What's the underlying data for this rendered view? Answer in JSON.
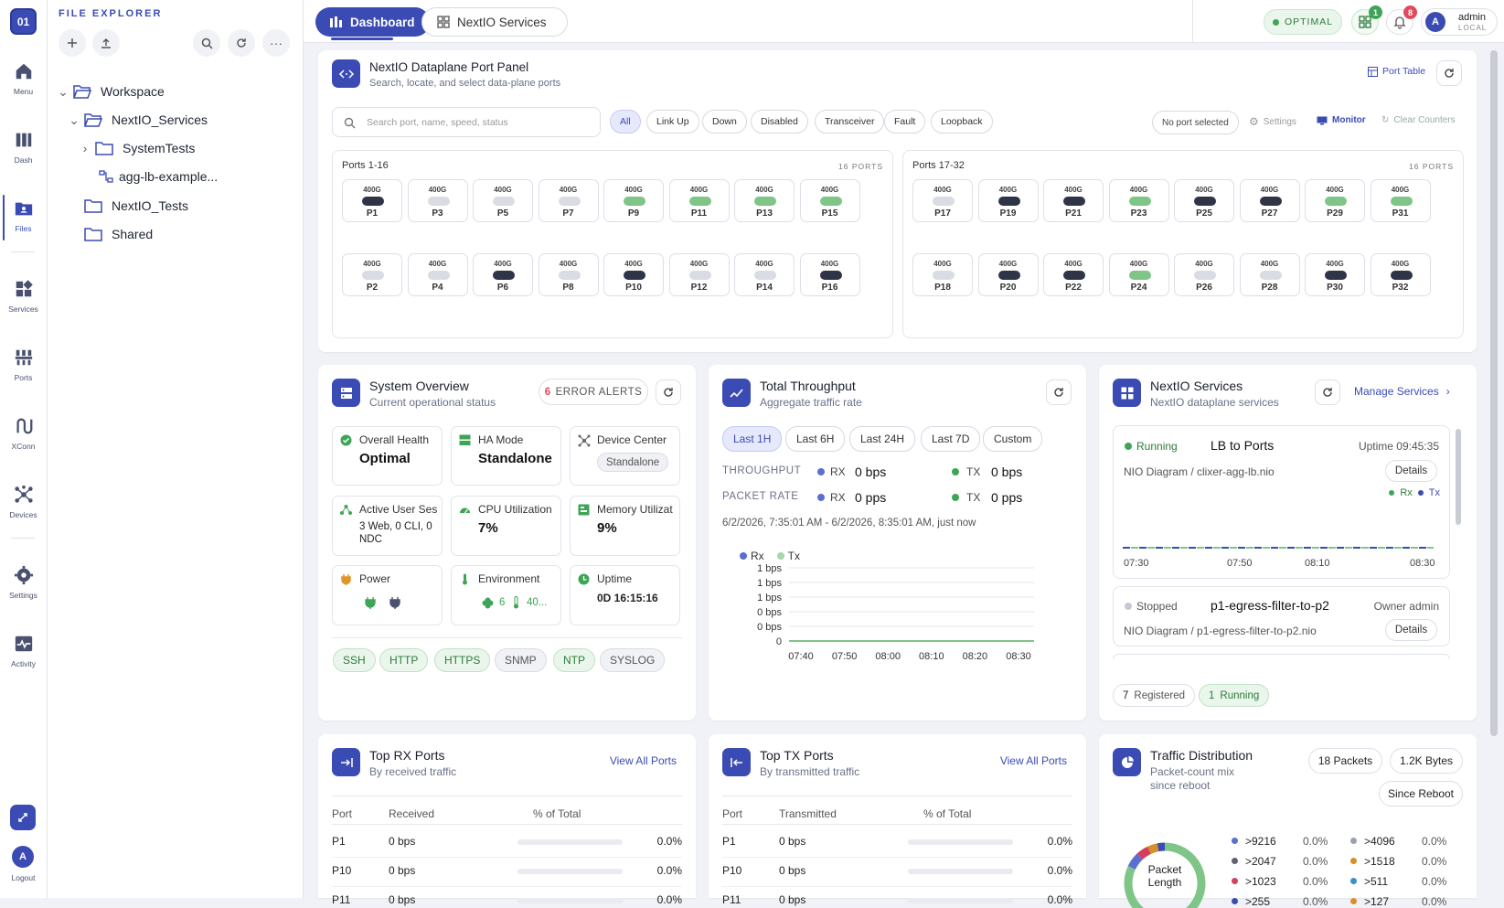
{
  "rail": {
    "items": [
      {
        "label": "Menu"
      },
      {
        "label": "Dash"
      },
      {
        "label": "Files"
      },
      {
        "label": "Services"
      },
      {
        "label": "Ports"
      },
      {
        "label": "XConn"
      },
      {
        "label": "Devices"
      },
      {
        "label": "Settings"
      },
      {
        "label": "Activity"
      }
    ],
    "logout_label": "Logout",
    "user_initial": "A",
    "logo_text": "01"
  },
  "explorer": {
    "title": "FILE EXPLORER",
    "tree": [
      {
        "label": "Workspace"
      },
      {
        "label": "NextIO_Services"
      },
      {
        "label": "SystemTests"
      },
      {
        "label": "agg-lb-example..."
      },
      {
        "label": "NextIO_Tests"
      },
      {
        "label": "Shared"
      }
    ]
  },
  "topbar": {
    "tabs": [
      {
        "label": "Dashboard"
      },
      {
        "label": "NextIO Services"
      }
    ],
    "status": "OPTIMAL",
    "grid_badge": "1",
    "bell_badge": "8",
    "user_initial": "A",
    "user_name": "admin",
    "user_realm": "LOCAL"
  },
  "port_panel": {
    "title": "NextIO Dataplane Port Panel",
    "subtitle": "Search, locate, and select data-plane ports",
    "port_table_label": "Port Table",
    "search_placeholder": "Search port, name, speed, status",
    "filters": [
      "All",
      "Link Up",
      "Down",
      "Disabled",
      "Transceiver",
      "Fault",
      "Loopback"
    ],
    "no_port_selected": "No port selected",
    "settings_label": "Settings",
    "monitor_label": "Monitor",
    "clear_counters_label": "Clear Counters",
    "groups": [
      {
        "title": "Ports 1-16",
        "count": "16 PORTS"
      },
      {
        "title": "Ports 17-32",
        "count": "16 PORTS"
      }
    ],
    "ports": [
      {
        "name": "P1",
        "speed": "400G",
        "state": "dark"
      },
      {
        "name": "P3",
        "speed": "400G",
        "state": "light"
      },
      {
        "name": "P5",
        "speed": "400G",
        "state": "light"
      },
      {
        "name": "P7",
        "speed": "400G",
        "state": "light"
      },
      {
        "name": "P9",
        "speed": "400G",
        "state": "green"
      },
      {
        "name": "P11",
        "speed": "400G",
        "state": "green"
      },
      {
        "name": "P13",
        "speed": "400G",
        "state": "green"
      },
      {
        "name": "P15",
        "speed": "400G",
        "state": "green"
      },
      {
        "name": "P2",
        "speed": "400G",
        "state": "light"
      },
      {
        "name": "P4",
        "speed": "400G",
        "state": "light"
      },
      {
        "name": "P6",
        "speed": "400G",
        "state": "dark"
      },
      {
        "name": "P8",
        "speed": "400G",
        "state": "light"
      },
      {
        "name": "P10",
        "speed": "400G",
        "state": "dark"
      },
      {
        "name": "P12",
        "speed": "400G",
        "state": "light"
      },
      {
        "name": "P14",
        "speed": "400G",
        "state": "light"
      },
      {
        "name": "P16",
        "speed": "400G",
        "state": "dark"
      },
      {
        "name": "P17",
        "speed": "400G",
        "state": "light"
      },
      {
        "name": "P19",
        "speed": "400G",
        "state": "dark"
      },
      {
        "name": "P21",
        "speed": "400G",
        "state": "dark"
      },
      {
        "name": "P23",
        "speed": "400G",
        "state": "green"
      },
      {
        "name": "P25",
        "speed": "400G",
        "state": "dark"
      },
      {
        "name": "P27",
        "speed": "400G",
        "state": "dark"
      },
      {
        "name": "P29",
        "speed": "400G",
        "state": "green"
      },
      {
        "name": "P31",
        "speed": "400G",
        "state": "green"
      },
      {
        "name": "P18",
        "speed": "400G",
        "state": "light"
      },
      {
        "name": "P20",
        "speed": "400G",
        "state": "dark"
      },
      {
        "name": "P22",
        "speed": "400G",
        "state": "dark"
      },
      {
        "name": "P24",
        "speed": "400G",
        "state": "green"
      },
      {
        "name": "P26",
        "speed": "400G",
        "state": "light"
      },
      {
        "name": "P28",
        "speed": "400G",
        "state": "light"
      },
      {
        "name": "P30",
        "speed": "400G",
        "state": "dark"
      },
      {
        "name": "P32",
        "speed": "400G",
        "state": "dark"
      }
    ]
  },
  "system_overview": {
    "title": "System Overview",
    "subtitle": "Current operational status",
    "alerts_count": "6",
    "alerts_label": "ERROR ALERTS",
    "tiles": [
      {
        "label": "Overall Health",
        "value": "Optimal"
      },
      {
        "label": "HA Mode",
        "value": "Standalone"
      },
      {
        "label": "Device Center",
        "value": "Standalone"
      },
      {
        "label": "Active User Ses",
        "value": "3 Web, 0 CLI, 0 NDC"
      },
      {
        "label": "CPU Utilization",
        "value": "7%"
      },
      {
        "label": "Memory Utilizat",
        "value": "9%"
      },
      {
        "label": "Power",
        "value": ""
      },
      {
        "label": "Environment",
        "value": "6",
        "value2": "40..."
      },
      {
        "label": "Uptime",
        "value": "0D 16:15:16"
      }
    ],
    "protocols": [
      {
        "name": "SSH",
        "on": true
      },
      {
        "name": "HTTP",
        "on": true
      },
      {
        "name": "HTTPS",
        "on": true
      },
      {
        "name": "SNMP",
        "on": false
      },
      {
        "name": "NTP",
        "on": true
      },
      {
        "name": "SYSLOG",
        "on": false
      }
    ]
  },
  "throughput": {
    "title": "Total Throughput",
    "subtitle": "Aggregate traffic rate",
    "ranges": [
      "Last 1H",
      "Last 6H",
      "Last 24H",
      "Last 7D",
      "Custom"
    ],
    "throughput_label": "THROUGHPUT",
    "packet_rate_label": "PACKET RATE",
    "rx_label": "RX",
    "tx_label": "TX",
    "throughput_rx": "0 bps",
    "throughput_tx": "0 bps",
    "packet_rx": "0 pps",
    "packet_tx": "0 pps",
    "range_text": "6/2/2026, 7:35:01 AM - 6/2/2026, 8:35:01 AM, just now",
    "colors": {
      "rx": "#5b6fd1",
      "tx": "#7fc587"
    }
  },
  "chart_data": {
    "type": "line",
    "x": [
      "07:40",
      "07:50",
      "08:00",
      "08:10",
      "08:20",
      "08:30"
    ],
    "y_ticks": [
      "1 bps",
      "1 bps",
      "1 bps",
      "0 bps",
      "0 bps",
      "0"
    ],
    "series": [
      {
        "name": "Rx",
        "values": [
          0,
          0,
          0,
          0,
          0,
          0
        ]
      },
      {
        "name": "Tx",
        "values": [
          0,
          0,
          0,
          0,
          0,
          0
        ]
      }
    ],
    "legend": "top-left",
    "grid": true
  },
  "services": {
    "title": "NextIO Services",
    "subtitle": "NextIO dataplane services",
    "manage_label": "Manage Services",
    "items": [
      {
        "status": "Running",
        "name": "LB to Ports",
        "meta": "Uptime 09:45:35",
        "path": "NIO Diagram / clixer-agg-lb.nio",
        "details": "Details",
        "rx": "Rx",
        "tx": "Tx",
        "times": [
          "07:30",
          "07:50",
          "08:10",
          "08:30"
        ]
      },
      {
        "status": "Stopped",
        "name": "p1-egress-filter-to-p2",
        "meta": "Owner admin",
        "path": "NIO Diagram / p1-egress-filter-to-p2.nio",
        "details": "Details"
      }
    ],
    "registered_count": "7",
    "registered_label": "Registered",
    "running_count": "1",
    "running_label": "Running"
  },
  "top_rx": {
    "title": "Top RX Ports",
    "subtitle": "By received traffic",
    "view_all": "View All Ports",
    "headers": [
      "Port",
      "Received",
      "% of Total"
    ],
    "rows": [
      {
        "port": "P1",
        "value": "0 bps",
        "pct": "0.0%"
      },
      {
        "port": "P10",
        "value": "0 bps",
        "pct": "0.0%"
      },
      {
        "port": "P11",
        "value": "0 bps",
        "pct": "0.0%"
      }
    ]
  },
  "top_tx": {
    "title": "Top TX Ports",
    "subtitle": "By transmitted traffic",
    "view_all": "View All Ports",
    "headers": [
      "Port",
      "Transmitted",
      "% of Total"
    ],
    "rows": [
      {
        "port": "P1",
        "value": "0 bps",
        "pct": "0.0%"
      },
      {
        "port": "P10",
        "value": "0 bps",
        "pct": "0.0%"
      },
      {
        "port": "P11",
        "value": "0 bps",
        "pct": "0.0%"
      }
    ]
  },
  "traffic_dist": {
    "title": "Traffic Distribution",
    "subtitle1": "Packet-count mix",
    "subtitle2": "since reboot",
    "packets": "18 Packets",
    "bytes": "1.2K Bytes",
    "since": "Since Reboot",
    "donut_label1": "Packet",
    "donut_label2": "Length",
    "legend": [
      {
        "label": ">9216",
        "pct": "0.0%",
        "color": "#5b6fd1"
      },
      {
        "label": ">4096",
        "pct": "0.0%",
        "color": "#9aa0b0"
      },
      {
        "label": ">2047",
        "pct": "0.0%",
        "color": "#5d6275"
      },
      {
        "label": ">1518",
        "pct": "0.0%",
        "color": "#d4902a"
      },
      {
        "label": ">1023",
        "pct": "0.0%",
        "color": "#d2405e"
      },
      {
        "label": ">511",
        "pct": "0.0%",
        "color": "#3a8fc7"
      },
      {
        "label": ">255",
        "pct": "0.0%",
        "color": "#3b4bb4"
      },
      {
        "label": ">127",
        "pct": "0.0%",
        "color": "#d4902a"
      }
    ]
  },
  "colors": {
    "accent": "#3b4bb4",
    "green": "#7fc587",
    "dark": "#2f3447",
    "light": "#d9dce3"
  }
}
